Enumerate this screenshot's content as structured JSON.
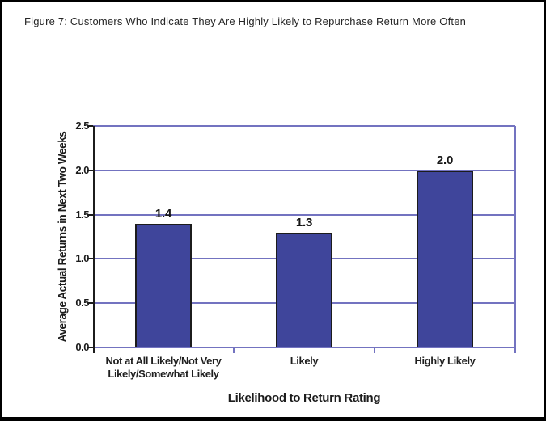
{
  "figure_title": "Figure 7:  Customers Who Indicate They Are Highly Likely to Repurchase Return More Often",
  "chart_data": {
    "type": "bar",
    "title": "Figure 7:  Customers Who Indicate They Are Highly Likely to Repurchase Return More Often",
    "categories": [
      "Not at All Likely/Not Very Likely/Somewhat Likely",
      "Likely",
      "Highly Likely"
    ],
    "category_display_lines": [
      [
        "Not at All Likely/Not Very",
        "Likely/Somewhat Likely"
      ],
      [
        "Likely"
      ],
      [
        "Highly Likely"
      ]
    ],
    "values": [
      1.4,
      1.3,
      2.0
    ],
    "bar_labels": [
      "1.4",
      "1.3",
      "2.0"
    ],
    "xlabel": "Likelihood to Return Rating",
    "ylabel": "Average Actual Returns in Next Two Weeks",
    "ylim": [
      0,
      2.5
    ],
    "ytick_labels": [
      "0.0",
      "0.5",
      "1.0",
      "1.5",
      "2.0",
      "2.5"
    ],
    "grid": true,
    "legend": "none",
    "colors": {
      "bar_fill": "#3f459b",
      "bar_border": "#1c1c1c",
      "gridline": "#7373c0",
      "axis": "#1c1c1c",
      "text": "#1c1c1c",
      "frame": "#000000",
      "background": "#ffffff"
    }
  }
}
